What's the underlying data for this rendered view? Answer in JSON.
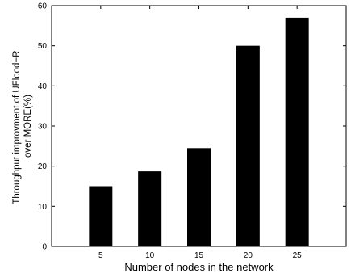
{
  "chart_data": {
    "type": "bar",
    "categories": [
      "5",
      "10",
      "15",
      "20",
      "25"
    ],
    "values": [
      15,
      18.7,
      24.5,
      50,
      57
    ],
    "xlabel": "Number of nodes in the network",
    "ylabel_lines": [
      "Throughput improvment of UFlood−R",
      "over MORE(%)"
    ],
    "ylim": [
      0,
      60
    ],
    "yticks": [
      0,
      10,
      20,
      30,
      40,
      50,
      60
    ],
    "grid": false,
    "bar_color": "#000000"
  }
}
